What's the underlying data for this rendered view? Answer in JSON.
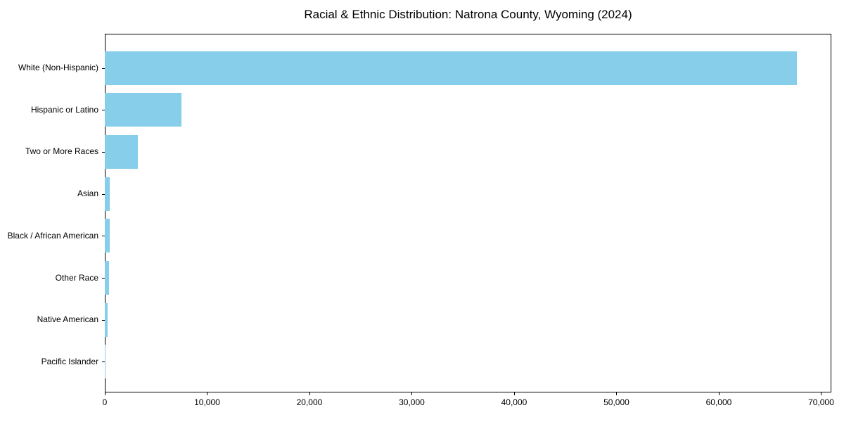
{
  "title": "Racial & Ethnic Distribution: Natrona County, Wyoming (2024)",
  "colors": {
    "bar": "#87CEEB",
    "axis": "#000000",
    "background": "#ffffff",
    "text": "#000000"
  },
  "chart_data": {
    "type": "bar",
    "orientation": "horizontal",
    "title": "Racial & Ethnic Distribution: Natrona County, Wyoming (2024)",
    "xlabel": "",
    "ylabel": "",
    "categories": [
      "White (Non-Hispanic)",
      "Hispanic or Latino",
      "Two or More Races",
      "Asian",
      "Black / African American",
      "Other Race",
      "Native American",
      "Pacific Islander"
    ],
    "values": [
      67600,
      7500,
      3260,
      460,
      460,
      390,
      260,
      40
    ],
    "xlim": [
      0,
      71000
    ],
    "x_ticks": [
      0,
      10000,
      20000,
      30000,
      40000,
      50000,
      60000,
      70000
    ],
    "x_tick_labels": [
      "0",
      "10,000",
      "20,000",
      "30,000",
      "40,000",
      "50,000",
      "60,000",
      "70,000"
    ],
    "grid": false,
    "legend": null,
    "bar_color": "#87CEEB"
  }
}
